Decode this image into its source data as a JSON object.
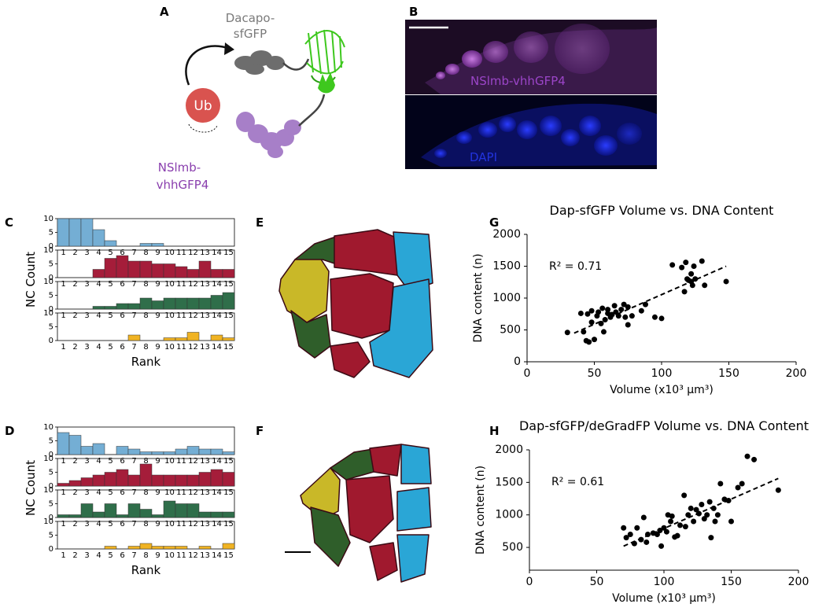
{
  "panel_labels": [
    "A",
    "B",
    "C",
    "D",
    "E",
    "F",
    "G",
    "H"
  ],
  "diagram": {
    "substrate": [
      "Dacapo-",
      "sfGFP"
    ],
    "ubiquitin": "Ub",
    "binder": [
      "NSlmb-",
      "vhhGFP4"
    ]
  },
  "image": {
    "top_label": "NSlmb-vhhGFP4",
    "bottom_label": "DAPI"
  },
  "chart_data": [
    {
      "type": "bar",
      "xlabel": "Rank",
      "ylabel": "NC Count",
      "categories": [
        "1",
        "2",
        "3",
        "4",
        "5",
        "6",
        "7",
        "8",
        "9",
        "10",
        "11",
        "12",
        "13",
        "14",
        "15"
      ],
      "series": [
        {
          "color": "#74aed4",
          "values": [
            10,
            10,
            10,
            6,
            2,
            0,
            0,
            1,
            1,
            0,
            0,
            0,
            0,
            0,
            0
          ]
        },
        {
          "color": "#a51d3a",
          "values": [
            0,
            0,
            0,
            3,
            7,
            8,
            6,
            6,
            5,
            5,
            4,
            3,
            6,
            3,
            3
          ]
        },
        {
          "color": "#2f6e4a",
          "values": [
            0,
            0,
            0,
            1,
            1,
            2,
            2,
            4,
            3,
            4,
            4,
            4,
            4,
            5,
            6
          ]
        },
        {
          "color": "#f0b323",
          "values": [
            0,
            0,
            0,
            0,
            0,
            0,
            2,
            0,
            0,
            1,
            1,
            3,
            0,
            2,
            1
          ]
        }
      ],
      "ylim": [
        0,
        10
      ],
      "yticks": [
        0,
        5,
        10
      ]
    },
    {
      "type": "bar",
      "xlabel": "Rank",
      "ylabel": "NC Count",
      "categories": [
        "1",
        "2",
        "3",
        "4",
        "5",
        "6",
        "7",
        "8",
        "9",
        "10",
        "11",
        "12",
        "13",
        "14",
        "15"
      ],
      "series": [
        {
          "color": "#74aed4",
          "values": [
            8,
            7,
            3,
            4,
            0,
            3,
            2,
            1,
            1,
            1,
            2,
            3,
            2,
            2,
            1
          ]
        },
        {
          "color": "#a51d3a",
          "values": [
            1,
            2,
            3,
            4,
            5,
            6,
            4,
            8,
            4,
            4,
            4,
            4,
            5,
            6,
            5
          ]
        },
        {
          "color": "#2f6e4a",
          "values": [
            1,
            1,
            5,
            2,
            5,
            1,
            5,
            3,
            1,
            6,
            5,
            5,
            2,
            2,
            2
          ]
        },
        {
          "color": "#f0b323",
          "values": [
            0,
            0,
            0,
            0,
            1,
            0,
            1,
            2,
            1,
            1,
            1,
            0,
            1,
            0,
            2
          ]
        }
      ],
      "ylim": [
        0,
        10
      ],
      "yticks": [
        0,
        5,
        10
      ]
    },
    {
      "type": "scatter",
      "title": "Dap-sfGFP Volume vs. DNA Content",
      "xlabel": "Volume (x10³ µm³)",
      "ylabel": "DNA content (n)",
      "annotation": "R² = 0.71",
      "color": "#000000",
      "x": [
        30,
        40,
        42,
        44,
        46,
        45,
        48,
        50,
        48,
        52,
        53,
        55,
        56,
        57,
        58,
        60,
        60,
        62,
        63,
        65,
        66,
        68,
        70,
        72,
        73,
        75,
        75,
        78,
        85,
        88,
        95,
        100,
        108,
        115,
        117,
        118,
        119,
        120,
        122,
        122,
        123,
        124,
        125,
        130,
        132,
        148
      ],
      "y": [
        460,
        760,
        470,
        330,
        310,
        750,
        800,
        350,
        620,
        720,
        780,
        600,
        840,
        470,
        660,
        760,
        820,
        700,
        740,
        880,
        780,
        720,
        820,
        900,
        700,
        860,
        580,
        720,
        800,
        900,
        700,
        680,
        1520,
        1480,
        1100,
        1560,
        1300,
        1280,
        1260,
        1380,
        1200,
        1500,
        1300,
        1580,
        1200,
        1260
      ],
      "trendline": {
        "x": [
          35,
          148
        ],
        "y": [
          450,
          1500
        ]
      },
      "xlim": [
        0,
        200
      ],
      "xticks": [
        0,
        50,
        100,
        150,
        200
      ],
      "ylim": [
        0,
        2000
      ],
      "yticks": [
        0,
        500,
        1000,
        1500,
        2000
      ]
    },
    {
      "type": "scatter",
      "title": "Dap-sfGFP/deGradFP Volume vs. DNA Content",
      "xlabel": "Volume (x10³ µm³)",
      "ylabel": "DNA content (n)",
      "annotation": "R² = 0.61",
      "color": "#000000",
      "x": [
        70,
        72,
        75,
        78,
        80,
        83,
        85,
        87,
        88,
        92,
        95,
        97,
        98,
        100,
        102,
        103,
        105,
        106,
        108,
        110,
        112,
        115,
        116,
        118,
        120,
        122,
        124,
        126,
        128,
        130,
        132,
        134,
        135,
        137,
        138,
        140,
        142,
        145,
        148,
        150,
        155,
        158,
        162,
        167,
        185
      ],
      "y": [
        800,
        650,
        700,
        560,
        800,
        620,
        960,
        580,
        700,
        720,
        700,
        760,
        520,
        800,
        740,
        1000,
        900,
        980,
        660,
        680,
        840,
        1300,
        820,
        1000,
        1100,
        900,
        1080,
        1020,
        1160,
        940,
        1000,
        1200,
        650,
        1100,
        900,
        1000,
        1480,
        1240,
        1220,
        900,
        1420,
        1480,
        1900,
        1850,
        1380
      ],
      "trendline": {
        "x": [
          70,
          185
        ],
        "y": [
          520,
          1560
        ]
      },
      "xlim": [
        0,
        200
      ],
      "xticks": [
        0,
        50,
        100,
        150,
        200
      ],
      "ylim": [
        150,
        2000
      ],
      "yticks": [
        500,
        1000,
        1500,
        2000
      ]
    }
  ]
}
